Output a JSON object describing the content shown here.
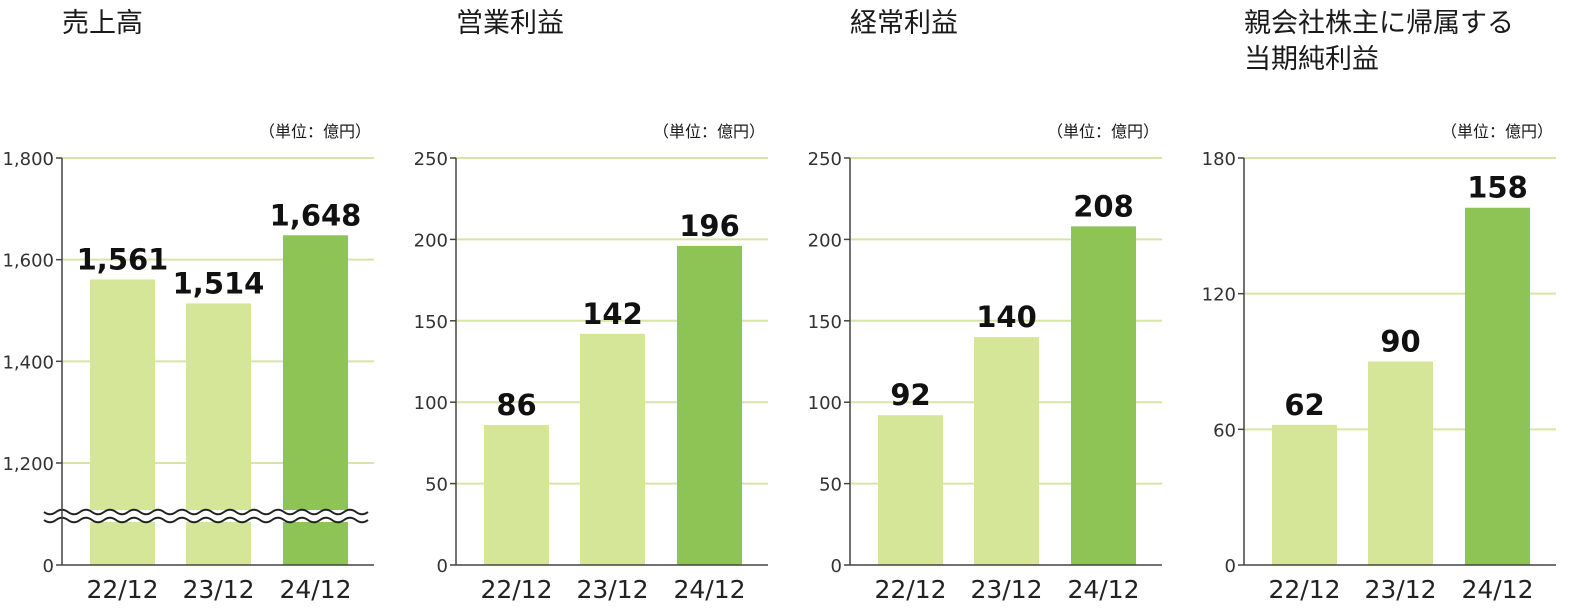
{
  "colors": {
    "light_bar": "#d6e699",
    "dark_bar": "#8dc455",
    "grid": "#d6e6a8",
    "axis": "#444444"
  },
  "chart_data": [
    {
      "type": "bar",
      "title": "売上高",
      "unit": "（単位：億円）",
      "categories": [
        "22/12",
        "23/12",
        "24/12"
      ],
      "values": [
        1561,
        1514,
        1648
      ],
      "value_labels": [
        "1,561",
        "1,514",
        "1,648"
      ],
      "yticks": [
        0,
        1200,
        1400,
        1600,
        1800
      ],
      "ytick_labels": [
        "0",
        "1,200",
        "1,400",
        "1,600",
        "1,800"
      ],
      "ylim": [
        0,
        1800
      ],
      "axis_break": true,
      "grid": true
    },
    {
      "type": "bar",
      "title": "営業利益",
      "unit": "（単位：億円）",
      "categories": [
        "22/12",
        "23/12",
        "24/12"
      ],
      "values": [
        86,
        142,
        196
      ],
      "value_labels": [
        "86",
        "142",
        "196"
      ],
      "yticks": [
        0,
        50,
        100,
        150,
        200,
        250
      ],
      "ytick_labels": [
        "0",
        "50",
        "100",
        "150",
        "200",
        "250"
      ],
      "ylim": [
        0,
        250
      ],
      "axis_break": false,
      "grid": true
    },
    {
      "type": "bar",
      "title": "経常利益",
      "unit": "（単位：億円）",
      "categories": [
        "22/12",
        "23/12",
        "24/12"
      ],
      "values": [
        92,
        140,
        208
      ],
      "value_labels": [
        "92",
        "140",
        "208"
      ],
      "yticks": [
        0,
        50,
        100,
        150,
        200,
        250
      ],
      "ytick_labels": [
        "0",
        "50",
        "100",
        "150",
        "200",
        "250"
      ],
      "ylim": [
        0,
        250
      ],
      "axis_break": false,
      "grid": true
    },
    {
      "type": "bar",
      "title": "親会社株主に帰属する\n当期純利益",
      "unit": "（単位：億円）",
      "categories": [
        "22/12",
        "23/12",
        "24/12"
      ],
      "values": [
        62,
        90,
        158
      ],
      "value_labels": [
        "62",
        "90",
        "158"
      ],
      "yticks": [
        0,
        60,
        120,
        180
      ],
      "ytick_labels": [
        "0",
        "60",
        "120",
        "180"
      ],
      "ylim": [
        0,
        180
      ],
      "axis_break": false,
      "grid": true
    }
  ]
}
